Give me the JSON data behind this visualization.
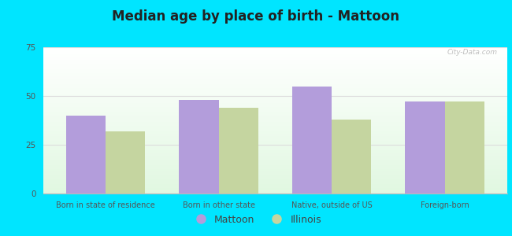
{
  "title": "Median age by place of birth - Mattoon",
  "categories": [
    "Born in state of residence",
    "Born in other state",
    "Native, outside of US",
    "Foreign-born"
  ],
  "mattoon_values": [
    40,
    48,
    55,
    47
  ],
  "illinois_values": [
    32,
    44,
    38,
    47
  ],
  "mattoon_color": "#b39ddb",
  "illinois_color": "#c5d5a0",
  "ylim": [
    0,
    75
  ],
  "yticks": [
    0,
    25,
    50,
    75
  ],
  "background_outer": "#00e5ff",
  "title_fontsize": 12,
  "legend_labels": [
    "Mattoon",
    "Illinois"
  ],
  "bar_width": 0.35,
  "grid_color": "#dddddd"
}
